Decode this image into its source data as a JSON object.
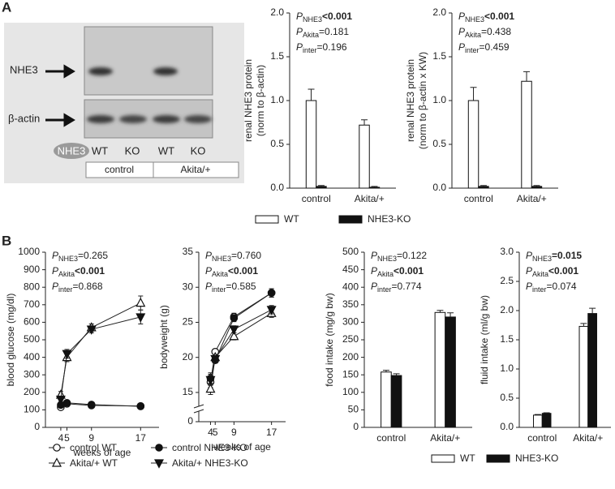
{
  "panel_labels": [
    "A",
    "B"
  ],
  "blot": {
    "bands": [
      "NHE3",
      "β-actin"
    ],
    "genotype_label": "NHE3",
    "lanes": [
      "WT",
      "KO",
      "WT",
      "KO"
    ],
    "groups": [
      "control",
      "Akita/+"
    ]
  },
  "chart_data": [
    {
      "type": "bar",
      "y_label": [
        "renal NHE3 protein",
        "(norm to β-actin)"
      ],
      "categories": [
        "control",
        "Akita/+"
      ],
      "series": [
        {
          "name": "WT",
          "color": "#ffffff",
          "values": [
            1.0,
            0.72
          ],
          "errors": [
            0.13,
            0.06
          ]
        },
        {
          "name": "NHE3-KO",
          "color": "#111111",
          "values": [
            0.02,
            0.01
          ],
          "errors": [
            0.01,
            0.01
          ]
        }
      ],
      "ylim": [
        0,
        2
      ],
      "yticks": [
        {
          "value": 0,
          "label": "0.0"
        },
        {
          "value": 0.5,
          "label": "0.5"
        },
        {
          "value": 1,
          "label": "1.0"
        },
        {
          "value": 1.5,
          "label": "1.5"
        },
        {
          "value": 2,
          "label": "2.0"
        }
      ],
      "stats": [
        {
          "p": "P",
          "sub": "NHE3",
          "value": "<0.001",
          "bold": true
        },
        {
          "p": "P",
          "sub": "Akita",
          "value": "=0.181",
          "bold": false
        },
        {
          "p": "P",
          "sub": "inter",
          "value": "=0.196",
          "bold": false
        }
      ],
      "legend": "bottom"
    },
    {
      "type": "bar",
      "y_label": [
        "renal NHE3 protein",
        "(norm to β-actin x KW)"
      ],
      "categories": [
        "control",
        "Akita/+"
      ],
      "series": [
        {
          "color": "#ffffff",
          "values": [
            1.0,
            1.22
          ],
          "errors": [
            0.15,
            0.11
          ]
        },
        {
          "color": "#111111",
          "values": [
            0.02,
            0.02
          ],
          "errors": [
            0.01,
            0.01
          ]
        }
      ],
      "ylim": [
        0,
        2
      ],
      "yticks": [
        {
          "value": 0,
          "label": "0.0"
        },
        {
          "value": 0.5,
          "label": "0.5"
        },
        {
          "value": 1,
          "label": "1.0"
        },
        {
          "value": 1.5,
          "label": "1.5"
        },
        {
          "value": 2,
          "label": "2.0"
        }
      ],
      "stats": [
        {
          "p": "P",
          "sub": "NHE3",
          "value": "<0.001",
          "bold": true
        },
        {
          "p": "P",
          "sub": "Akita",
          "value": "=0.438",
          "bold": false
        },
        {
          "p": "P",
          "sub": "inter",
          "value": "=0.459",
          "bold": false
        }
      ]
    },
    {
      "type": "line",
      "y_label": [
        "blood glucose (mg/dl)"
      ],
      "x_label": "weeks of age",
      "x": [
        4,
        5,
        9,
        17
      ],
      "xlim": [
        1.5,
        20
      ],
      "xticks": [
        4,
        5,
        9,
        17
      ],
      "ylim": [
        0,
        1000
      ],
      "yticks": [
        0,
        100,
        200,
        300,
        400,
        500,
        600,
        700,
        800,
        900,
        1000
      ],
      "series": [
        {
          "name": "control WT",
          "marker": "circle-open",
          "values": [
            115,
            135,
            125,
            122
          ],
          "errors": [
            8,
            8,
            8,
            8
          ]
        },
        {
          "name": "Akita/+ WT",
          "marker": "triangle-up-open",
          "values": [
            185,
            400,
            570,
            710
          ],
          "errors": [
            20,
            25,
            20,
            40
          ]
        },
        {
          "name": "control NHE3-KO",
          "marker": "circle-filled",
          "values": [
            128,
            140,
            130,
            120
          ],
          "errors": [
            8,
            8,
            8,
            8
          ]
        },
        {
          "name": "Akita/+ NHE3-KO",
          "marker": "triangle-down-filled",
          "values": [
            160,
            420,
            560,
            630
          ],
          "errors": [
            15,
            25,
            20,
            40
          ]
        }
      ],
      "stats": [
        {
          "p": "P",
          "sub": "NHE3",
          "value": "=0.265",
          "bold": false
        },
        {
          "p": "P",
          "sub": "Akita",
          "value": "<0.001",
          "bold": true
        },
        {
          "p": "P",
          "sub": "inter",
          "value": "=0.868",
          "bold": false
        }
      ],
      "legend": "bottom"
    },
    {
      "type": "line",
      "y_label": [
        "bodyweight (g)"
      ],
      "x_label": "weeks of age",
      "x": [
        4,
        5,
        9,
        17
      ],
      "xlim": [
        1.5,
        20
      ],
      "xticks": [
        4,
        5,
        9,
        17
      ],
      "ylim": [
        0,
        35
      ],
      "ybreak": [
        0,
        14.3
      ],
      "yticks": [
        0,
        15,
        20,
        25,
        30,
        35
      ],
      "series": [
        {
          "marker": "circle-open",
          "values": [
            16.5,
            20.8,
            25.8,
            29.2
          ],
          "errors": [
            0.8,
            0.4,
            0.5,
            0.6
          ]
        },
        {
          "marker": "triangle-up-open",
          "values": [
            15.5,
            20.0,
            23.0,
            26.3
          ],
          "errors": [
            0.8,
            0.4,
            0.5,
            0.6
          ]
        },
        {
          "marker": "circle-filled",
          "values": [
            17.0,
            19.6,
            25.6,
            29.2
          ],
          "errors": [
            0.8,
            0.4,
            0.5,
            0.6
          ]
        },
        {
          "marker": "triangle-down-filled",
          "values": [
            16.8,
            19.8,
            24.0,
            26.8
          ],
          "errors": [
            0.8,
            0.4,
            0.5,
            0.6
          ]
        }
      ],
      "stats": [
        {
          "p": "P",
          "sub": "NHE3",
          "value": "=0.760",
          "bold": false
        },
        {
          "p": "P",
          "sub": "Akita",
          "value": "<0.001",
          "bold": true
        },
        {
          "p": "P",
          "sub": "inter",
          "value": "=0.585",
          "bold": false
        }
      ]
    },
    {
      "type": "bar",
      "y_label": [
        "food intake (mg/g bw)"
      ],
      "categories": [
        "control",
        "Akita/+"
      ],
      "series": [
        {
          "name": "WT",
          "color": "#ffffff",
          "values": [
            158,
            328
          ],
          "errors": [
            5,
            6
          ]
        },
        {
          "name": "NHE3-KO",
          "color": "#111111",
          "values": [
            148,
            315
          ],
          "errors": [
            5,
            12
          ]
        }
      ],
      "ylim": [
        0,
        500
      ],
      "yticks": [
        0,
        50,
        100,
        150,
        200,
        250,
        300,
        350,
        400,
        450,
        500
      ],
      "stats": [
        {
          "p": "P",
          "sub": "NHE3",
          "value": "=0.122",
          "bold": false
        },
        {
          "p": "P",
          "sub": "Akita",
          "value": "<0.001",
          "bold": true
        },
        {
          "p": "P",
          "sub": "inter",
          "value": "=0.774",
          "bold": false
        }
      ],
      "legend": "bottom"
    },
    {
      "type": "bar",
      "y_label": [
        "fluid intake (ml/g bw)"
      ],
      "categories": [
        "control",
        "Akita/+"
      ],
      "series": [
        {
          "color": "#ffffff",
          "values": [
            0.21,
            1.73
          ],
          "errors": [
            0.01,
            0.05
          ]
        },
        {
          "color": "#111111",
          "values": [
            0.24,
            1.95
          ],
          "errors": [
            0.01,
            0.09
          ]
        }
      ],
      "ylim": [
        0,
        3
      ],
      "yticks": [
        {
          "value": 0,
          "label": "0.0"
        },
        {
          "value": 0.5,
          "label": "0.5"
        },
        {
          "value": 1,
          "label": "1.0"
        },
        {
          "value": 1.5,
          "label": "1.5"
        },
        {
          "value": 2,
          "label": "2.0"
        },
        {
          "value": 2.5,
          "label": "2.5"
        },
        {
          "value": 3,
          "label": "3.0"
        }
      ],
      "stats": [
        {
          "p": "P",
          "sub": "NHE3",
          "value": "=0.015",
          "bold": true
        },
        {
          "p": "P",
          "sub": "Akita",
          "value": "<0.001",
          "bold": true
        },
        {
          "p": "P",
          "sub": "inter",
          "value": "=0.074",
          "bold": false
        }
      ]
    }
  ]
}
